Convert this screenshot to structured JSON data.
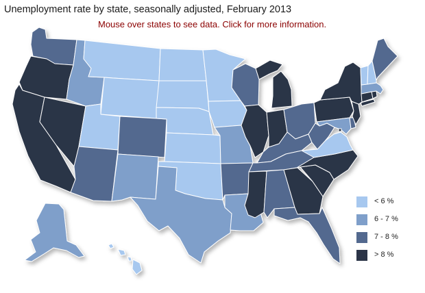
{
  "title": "Unemployment rate by state, seasonally adjusted, February 2013",
  "subtitle": "Mouse over states to see data. Click for more information.",
  "colors": {
    "lt6": "#a7c8ef",
    "6to7": "#7f9fca",
    "7to8": "#53698f",
    "gt8": "#2b3447",
    "border": "#ffffff"
  },
  "legend": [
    {
      "label": "< 6 %",
      "color": "#a7c8ef"
    },
    {
      "label": "6 - 7 %",
      "color": "#7f9fca"
    },
    {
      "label": "7 - 8 %",
      "color": "#53698f"
    },
    {
      "label": "> 8 %",
      "color": "#2b3447"
    }
  ],
  "chart_data": {
    "type": "choropleth",
    "title": "Unemployment rate by state, seasonally adjusted, February 2013",
    "classes": [
      "< 6 %",
      "6 - 7 %",
      "7 - 8 %",
      "> 8 %"
    ],
    "state_class": {
      "WA": "7 - 8 %",
      "OR": "> 8 %",
      "CA": "> 8 %",
      "NV": "> 8 %",
      "ID": "6 - 7 %",
      "MT": "< 6 %",
      "WY": "< 6 %",
      "UT": "< 6 %",
      "AZ": "7 - 8 %",
      "CO": "7 - 8 %",
      "NM": "6 - 7 %",
      "ND": "< 6 %",
      "SD": "< 6 %",
      "NE": "< 6 %",
      "KS": "< 6 %",
      "OK": "< 6 %",
      "TX": "6 - 7 %",
      "MN": "< 6 %",
      "IA": "< 6 %",
      "MO": "6 - 7 %",
      "AR": "7 - 8 %",
      "LA": "6 - 7 %",
      "WI": "7 - 8 %",
      "IL": "> 8 %",
      "MI": "> 8 %",
      "IN": "> 8 %",
      "OH": "7 - 8 %",
      "KY": "7 - 8 %",
      "TN": "7 - 8 %",
      "MS": "> 8 %",
      "AL": "7 - 8 %",
      "GA": "> 8 %",
      "FL": "7 - 8 %",
      "SC": "> 8 %",
      "NC": "> 8 %",
      "VA": "< 6 %",
      "WV": "7 - 8 %",
      "MD": "6 - 7 %",
      "DE": "7 - 8 %",
      "PA": "> 8 %",
      "NJ": "> 8 %",
      "NY": "> 8 %",
      "CT": "> 8 %",
      "RI": "> 8 %",
      "MA": "6 - 7 %",
      "VT": "< 6 %",
      "NH": "< 6 %",
      "ME": "7 - 8 %",
      "AK": "6 - 7 %",
      "HI": "< 6 %",
      "DC": "> 8 %"
    }
  }
}
